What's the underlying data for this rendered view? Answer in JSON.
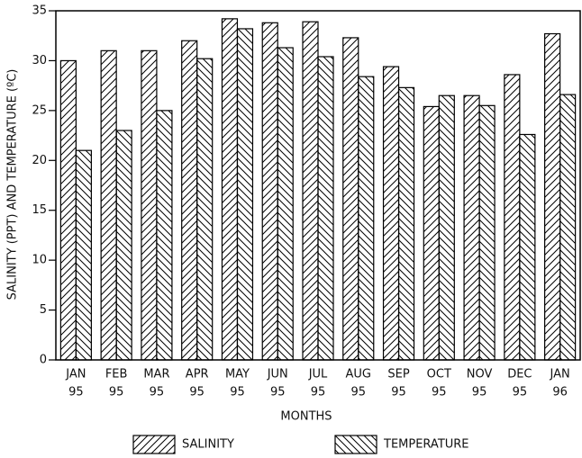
{
  "chart_data": {
    "type": "bar",
    "ylabel": "SALINITY (PPT) AND TEMPERATURE (ºC)",
    "xlabel": "MONTHS",
    "categories": [
      [
        "JAN",
        "95"
      ],
      [
        "FEB",
        "95"
      ],
      [
        "MAR",
        "95"
      ],
      [
        "APR",
        "95"
      ],
      [
        "MAY",
        "95"
      ],
      [
        "JUN",
        "95"
      ],
      [
        "JUL",
        "95"
      ],
      [
        "AUG",
        "95"
      ],
      [
        "SEP",
        "95"
      ],
      [
        "OCT",
        "95"
      ],
      [
        "NOV",
        "95"
      ],
      [
        "DEC",
        "95"
      ],
      [
        "JAN",
        "96"
      ]
    ],
    "series": [
      {
        "name": "SALINITY",
        "color": "#000000",
        "values": [
          30,
          31,
          31,
          32,
          34.2,
          33.8,
          33.9,
          32.3,
          29.4,
          25.4,
          26.5,
          28.6,
          32.7
        ]
      },
      {
        "name": "TEMPERATURE",
        "color": "#000000",
        "values": [
          21,
          23,
          25,
          30.2,
          33.2,
          31.3,
          30.4,
          28.4,
          27.3,
          26.5,
          25.5,
          22.6,
          26.6
        ]
      }
    ],
    "ylim": [
      0,
      35
    ],
    "yticks": [
      0,
      5,
      10,
      15,
      20,
      25,
      30,
      35
    ],
    "grid": false,
    "legend": "bottom"
  }
}
